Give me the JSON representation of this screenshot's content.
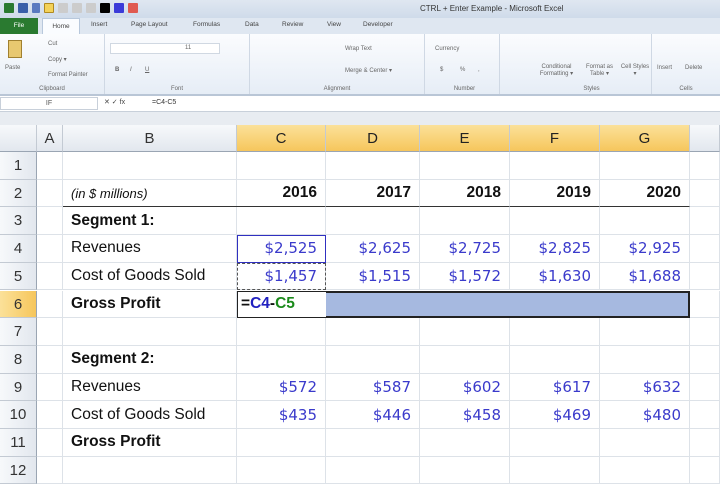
{
  "window": {
    "title": "CTRL + Enter Example  -  Microsoft Excel"
  },
  "tabs": [
    "File",
    "Home",
    "Insert",
    "Page Layout",
    "Formulas",
    "Data",
    "Review",
    "View",
    "Developer"
  ],
  "ribbon": {
    "clipboard": {
      "label": "Clipboard",
      "paste": "Paste",
      "cut": "Cut",
      "copy": "Copy ▾",
      "format_painter": "Format Painter"
    },
    "font": {
      "label": "Font",
      "size": "11",
      "bold": "B",
      "italic": "I",
      "underline": "U"
    },
    "alignment": {
      "label": "Alignment",
      "wrap_text": "Wrap Text",
      "merge_center": "Merge & Center ▾"
    },
    "number": {
      "label": "Number",
      "format": "Currency",
      "dollar": "$",
      "percent": "%",
      "comma": ","
    },
    "styles": {
      "label": "Styles",
      "conditional": "Conditional Formatting ▾",
      "format_table": "Format as Table ▾",
      "cell_styles": "Cell Styles ▾"
    },
    "cells": {
      "label": "Cells",
      "insert": "Insert",
      "delete": "Delete"
    }
  },
  "formula_bar": {
    "name_box": "IF",
    "fx": "✕ ✓ fx",
    "formula": "=C4-C5"
  },
  "columns": [
    "A",
    "B",
    "C",
    "D",
    "E",
    "F",
    "G"
  ],
  "rows": [
    "1",
    "2",
    "3",
    "4",
    "5",
    "6",
    "7",
    "8",
    "9",
    "10",
    "11",
    "12"
  ],
  "sheet": {
    "units": "(in $ millions)",
    "years": [
      "2016",
      "2017",
      "2018",
      "2019",
      "2020"
    ],
    "segment1": {
      "title": "Segment 1:",
      "revenues_label": "Revenues",
      "revenues": [
        "$2,525",
        "$2,625",
        "$2,725",
        "$2,825",
        "$2,925"
      ],
      "cogs_label": "Cost of Goods Sold",
      "cogs": [
        "$1,457",
        "$1,515",
        "$1,572",
        "$1,630",
        "$1,688"
      ],
      "gp_label": "Gross Profit"
    },
    "segment2": {
      "title": "Segment 2:",
      "revenues_label": "Revenues",
      "revenues": [
        "$572",
        "$587",
        "$602",
        "$617",
        "$632"
      ],
      "cogs_label": "Cost of Goods Sold",
      "cogs": [
        "$435",
        "$446",
        "$458",
        "$469",
        "$480"
      ],
      "gp_label": "Gross Profit"
    },
    "edit": {
      "eq": "=",
      "ref1": "C4",
      "minus": "-",
      "ref2": "C5"
    }
  },
  "colors": {
    "selection": "#a6b9e0",
    "ref1": "#2020c0",
    "ref2": "#1a8a1a",
    "number": "#3a3acb",
    "header_selected": "#f6c65c"
  }
}
